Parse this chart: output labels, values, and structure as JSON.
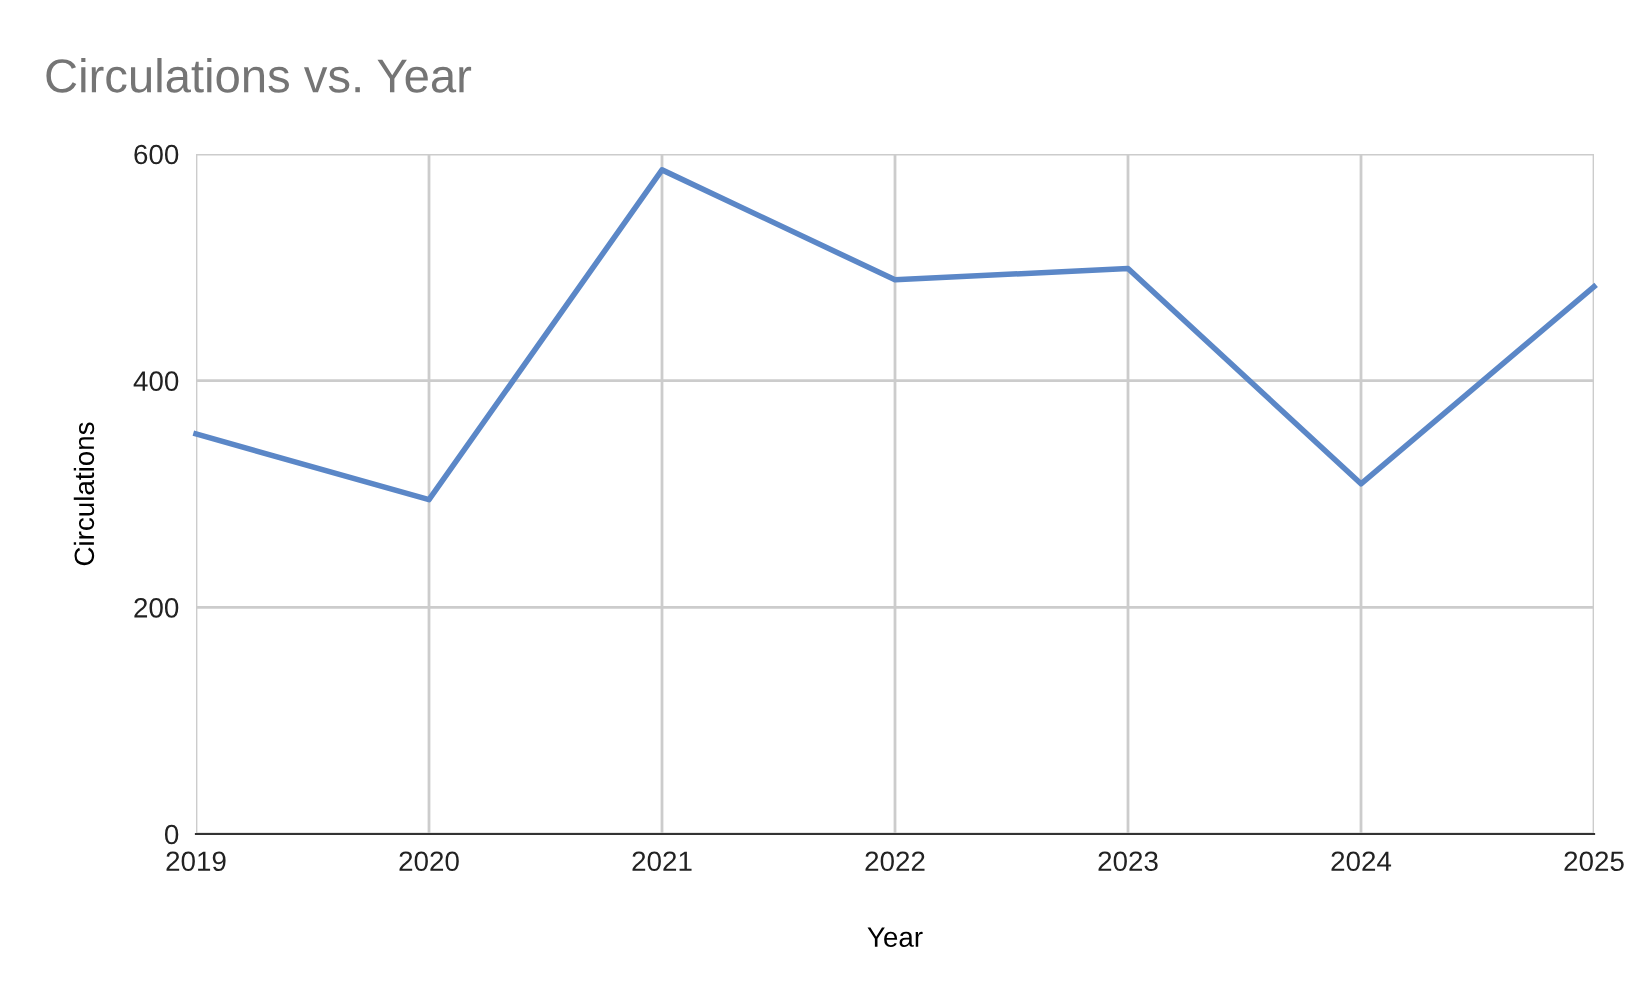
{
  "chart_data": {
    "type": "line",
    "title": "Circulations vs. Year",
    "xlabel": "Year",
    "ylabel": "Circulations",
    "x": [
      2019,
      2020,
      2021,
      2022,
      2023,
      2024,
      2025
    ],
    "series": [
      {
        "color": "#5b87c7",
        "values": [
          353,
          295,
          586,
          489,
          499,
          309,
          483
        ]
      }
    ],
    "xlim": [
      2019,
      2025
    ],
    "xticks": [
      2019,
      2020,
      2021,
      2022,
      2023,
      2024,
      2025
    ],
    "ylim": [
      0,
      600
    ],
    "yticks": [
      0,
      200,
      400,
      600
    ],
    "grid": true,
    "legend": false,
    "marker": "none",
    "line_style": "solid"
  }
}
